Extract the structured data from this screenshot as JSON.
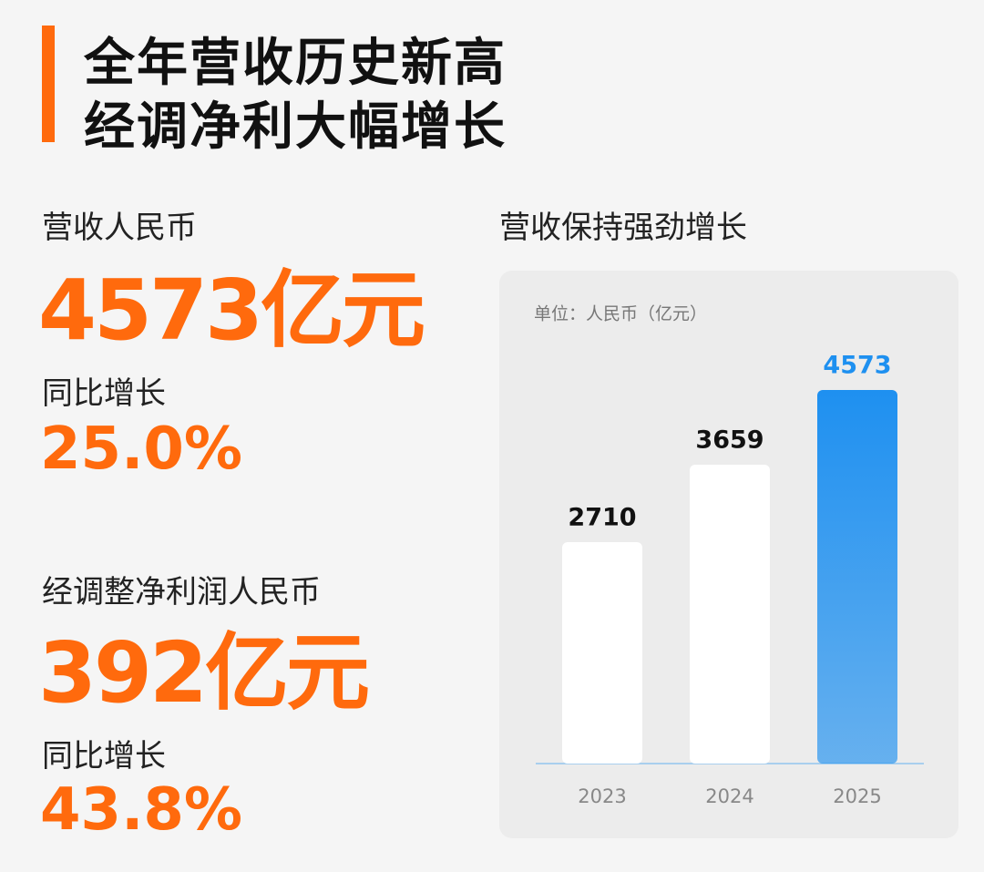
{
  "header": {
    "title": [
      "全年营收历史新高",
      "经调净利大幅增长"
    ]
  },
  "metrics": [
    {
      "label": "营收人民币",
      "value": "4573亿元",
      "change_label": "同比增长",
      "change": "25.0%"
    },
    {
      "label": "经调整净利润人民币",
      "value": "392亿元",
      "change_label": "同比增长",
      "change": "43.8%"
    }
  ],
  "chart_data": {
    "type": "bar",
    "title": "营收保持强劲增长",
    "subtitle": "单位：人民币（亿元）",
    "categories": [
      "2023",
      "2024",
      "2025"
    ],
    "values": [
      2710,
      3659,
      4573
    ],
    "colors": [
      "#ffffff",
      "#ffffff",
      "#1e90f0"
    ]
  }
}
